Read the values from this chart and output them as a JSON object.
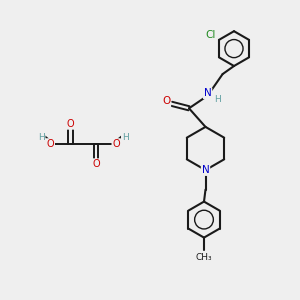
{
  "background_color": "#efefef",
  "bond_color": "#1a1a1a",
  "atom_colors": {
    "O": "#cc0000",
    "N": "#0000cc",
    "Cl": "#228B22",
    "H": "#5f9ea0",
    "C": "#1a1a1a"
  }
}
